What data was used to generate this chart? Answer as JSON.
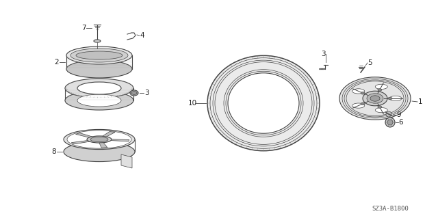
{
  "background_color": "#ffffff",
  "label_color": "#222222",
  "line_color": "#444444",
  "font_size": 7.5,
  "diagram_ref": "SZ3A-B1800",
  "lw_thin": 0.5,
  "lw_med": 0.8,
  "lw_thick": 1.1
}
